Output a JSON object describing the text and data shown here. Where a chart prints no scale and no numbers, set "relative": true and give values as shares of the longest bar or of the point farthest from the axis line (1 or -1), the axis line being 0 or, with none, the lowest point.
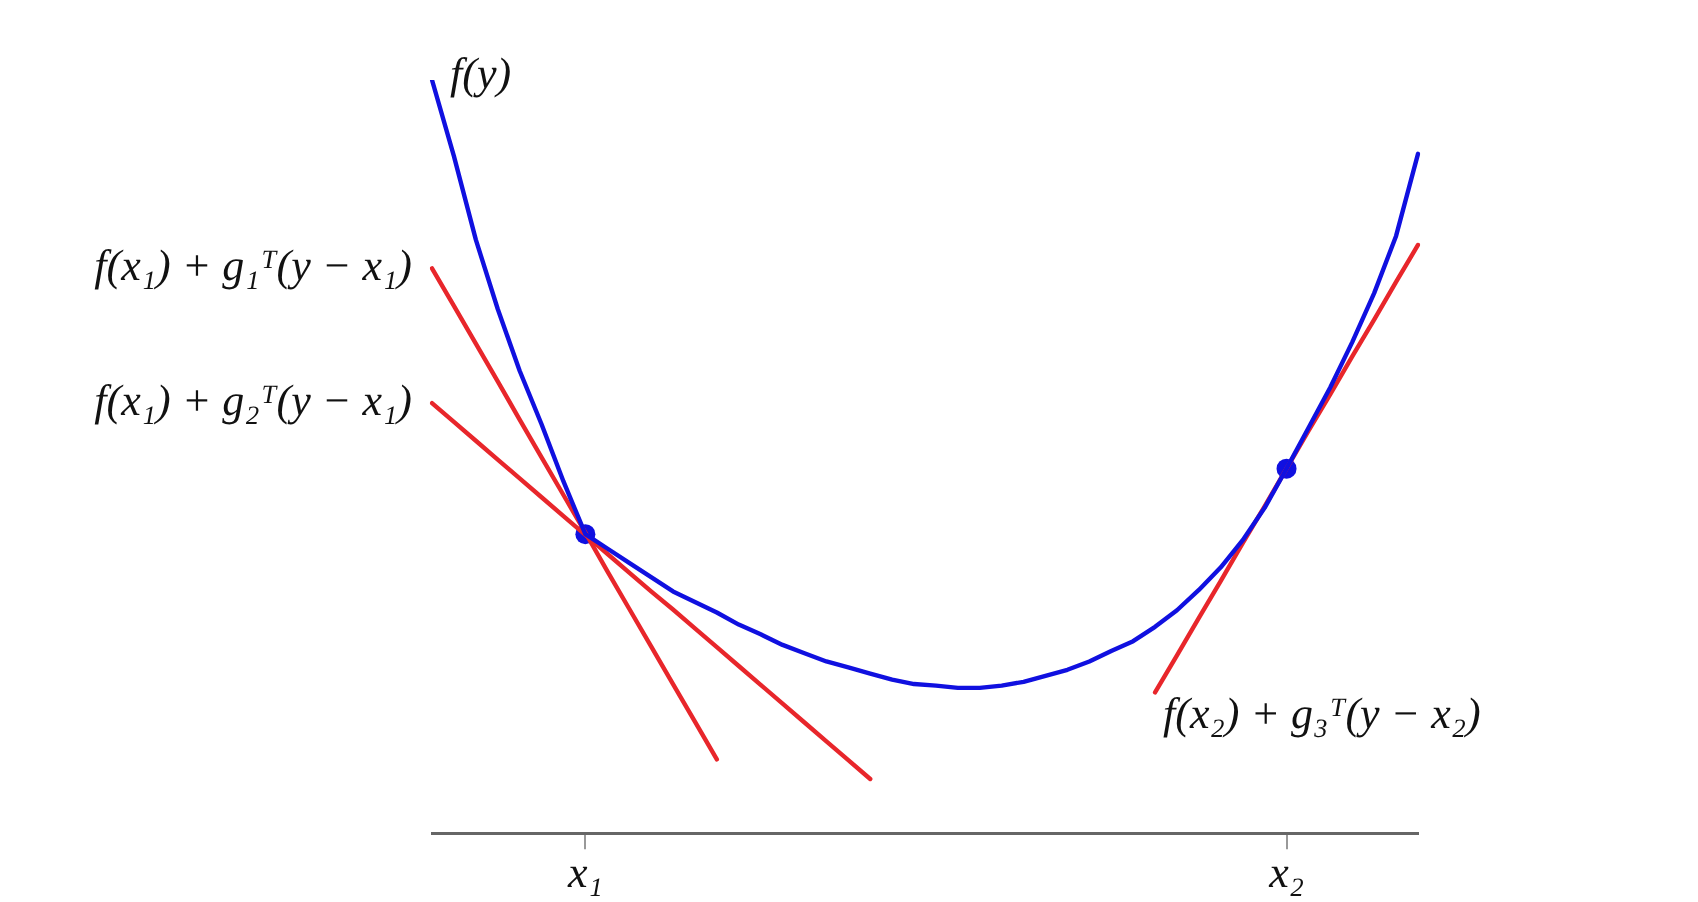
{
  "chart_data": {
    "type": "line",
    "relative": true,
    "legend": false,
    "grid": false,
    "categories": [
      null,
      null,
      null,
      null,
      null,
      null,
      null,
      "x₁",
      null,
      null,
      null,
      null,
      null,
      null,
      null,
      null,
      null,
      null,
      null,
      null,
      null,
      null,
      null,
      null,
      null,
      null,
      null,
      null,
      null,
      null,
      null,
      null,
      null,
      null,
      null,
      null,
      null,
      null,
      null,
      "x₂",
      null,
      null,
      null,
      null,
      null,
      null
    ],
    "series": [
      {
        "name": "f(y)",
        "type": "line",
        "color": "#1010e0",
        "values": [
          1.0,
          0.899,
          0.788,
          0.696,
          0.614,
          0.543,
          0.467,
          0.397,
          0.378,
          0.359,
          0.34,
          0.321,
          0.307,
          0.293,
          0.277,
          0.264,
          0.25,
          0.239,
          0.228,
          0.22,
          0.212,
          0.204,
          0.198,
          0.196,
          0.193,
          0.193,
          0.196,
          0.201,
          0.209,
          0.217,
          0.228,
          0.242,
          0.255,
          0.274,
          0.296,
          0.323,
          0.353,
          0.389,
          0.432,
          0.484,
          0.538,
          0.592,
          0.652,
          0.717,
          0.793,
          0.902
        ]
      },
      {
        "name": "f(x₁) + g₁ᵀ(y − x₁)",
        "type": "line",
        "color": "#e8262b",
        "values": [
          0.75,
          0.7,
          0.65,
          0.6,
          0.549,
          0.499,
          0.449,
          0.399,
          0.348,
          0.298,
          0.248,
          0.198,
          0.148,
          0.098,
          null,
          null,
          null,
          null,
          null,
          null,
          null,
          null,
          null,
          null,
          null,
          null,
          null,
          null,
          null,
          null,
          null,
          null,
          null,
          null,
          null,
          null,
          null,
          null,
          null,
          null,
          null,
          null,
          null,
          null,
          null,
          null
        ]
      },
      {
        "name": "f(x₁) + g₂ᵀ(y − x₁)",
        "type": "line",
        "color": "#e8262b",
        "values": [
          0.571,
          0.546,
          0.521,
          0.496,
          0.471,
          0.446,
          0.421,
          0.396,
          0.371,
          0.346,
          0.321,
          0.297,
          0.272,
          0.247,
          0.222,
          0.197,
          0.172,
          0.147,
          0.122,
          0.097,
          0.072,
          null,
          null,
          null,
          null,
          null,
          null,
          null,
          null,
          null,
          null,
          null,
          null,
          null,
          null,
          null,
          null,
          null,
          null,
          null,
          null,
          null,
          null,
          null,
          null,
          null
        ]
      },
      {
        "name": "f(x₂) + g₃ᵀ(y − x₂)",
        "type": "line",
        "color": "#e8262b",
        "values": [
          null,
          null,
          null,
          null,
          null,
          null,
          null,
          null,
          null,
          null,
          null,
          null,
          null,
          null,
          null,
          null,
          null,
          null,
          null,
          null,
          null,
          null,
          null,
          null,
          null,
          null,
          null,
          null,
          null,
          null,
          null,
          null,
          null,
          0.187,
          0.236,
          0.286,
          0.335,
          0.385,
          0.434,
          0.484,
          0.534,
          0.583,
          0.633,
          0.682,
          0.732,
          0.781
        ]
      },
      {
        "type": "scatter",
        "marker": "circle",
        "color": "#1010e0",
        "values": [
          null,
          null,
          null,
          null,
          null,
          null,
          null,
          0.397,
          null,
          null,
          null,
          null,
          null,
          null,
          null,
          null,
          null,
          null,
          null,
          null,
          null,
          null,
          null,
          null,
          null,
          null,
          null,
          null,
          null,
          null,
          null,
          null,
          null,
          null,
          null,
          null,
          null,
          null,
          null,
          0.484,
          null,
          null,
          null,
          null,
          null,
          null
        ]
      }
    ]
  }
}
